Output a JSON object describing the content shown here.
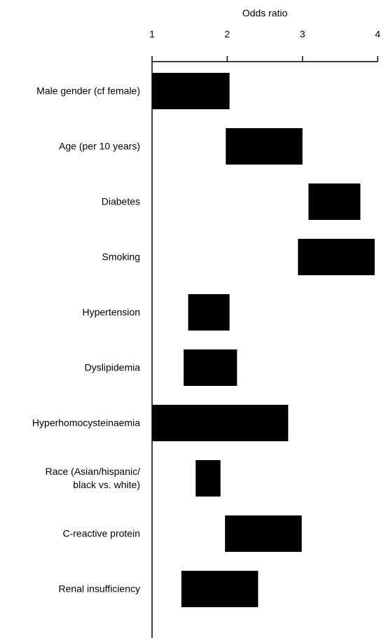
{
  "chart_data": {
    "type": "floating_bar",
    "xlabel": "Odds ratio",
    "categories": [
      "Male gender (cf female)",
      "Age (per 10 years)",
      "Diabetes",
      "Smoking",
      "Hypertension",
      "Dyslipidemia",
      "Hyperhomocysteinaemia",
      "Race (Asian/hispanic/\nblack vs. white)",
      "C-reactive protein",
      "Renal insufficiency"
    ],
    "low": [
      1.0,
      1.98,
      3.08,
      2.94,
      1.48,
      1.42,
      1.0,
      1.58,
      1.97,
      1.39
    ],
    "high": [
      2.03,
      3.0,
      3.77,
      3.96,
      2.03,
      2.13,
      2.81,
      1.91,
      2.99,
      2.41
    ],
    "color": "#000000",
    "xlim": [
      1,
      4
    ],
    "xticks": [
      1,
      2,
      3,
      4
    ]
  }
}
